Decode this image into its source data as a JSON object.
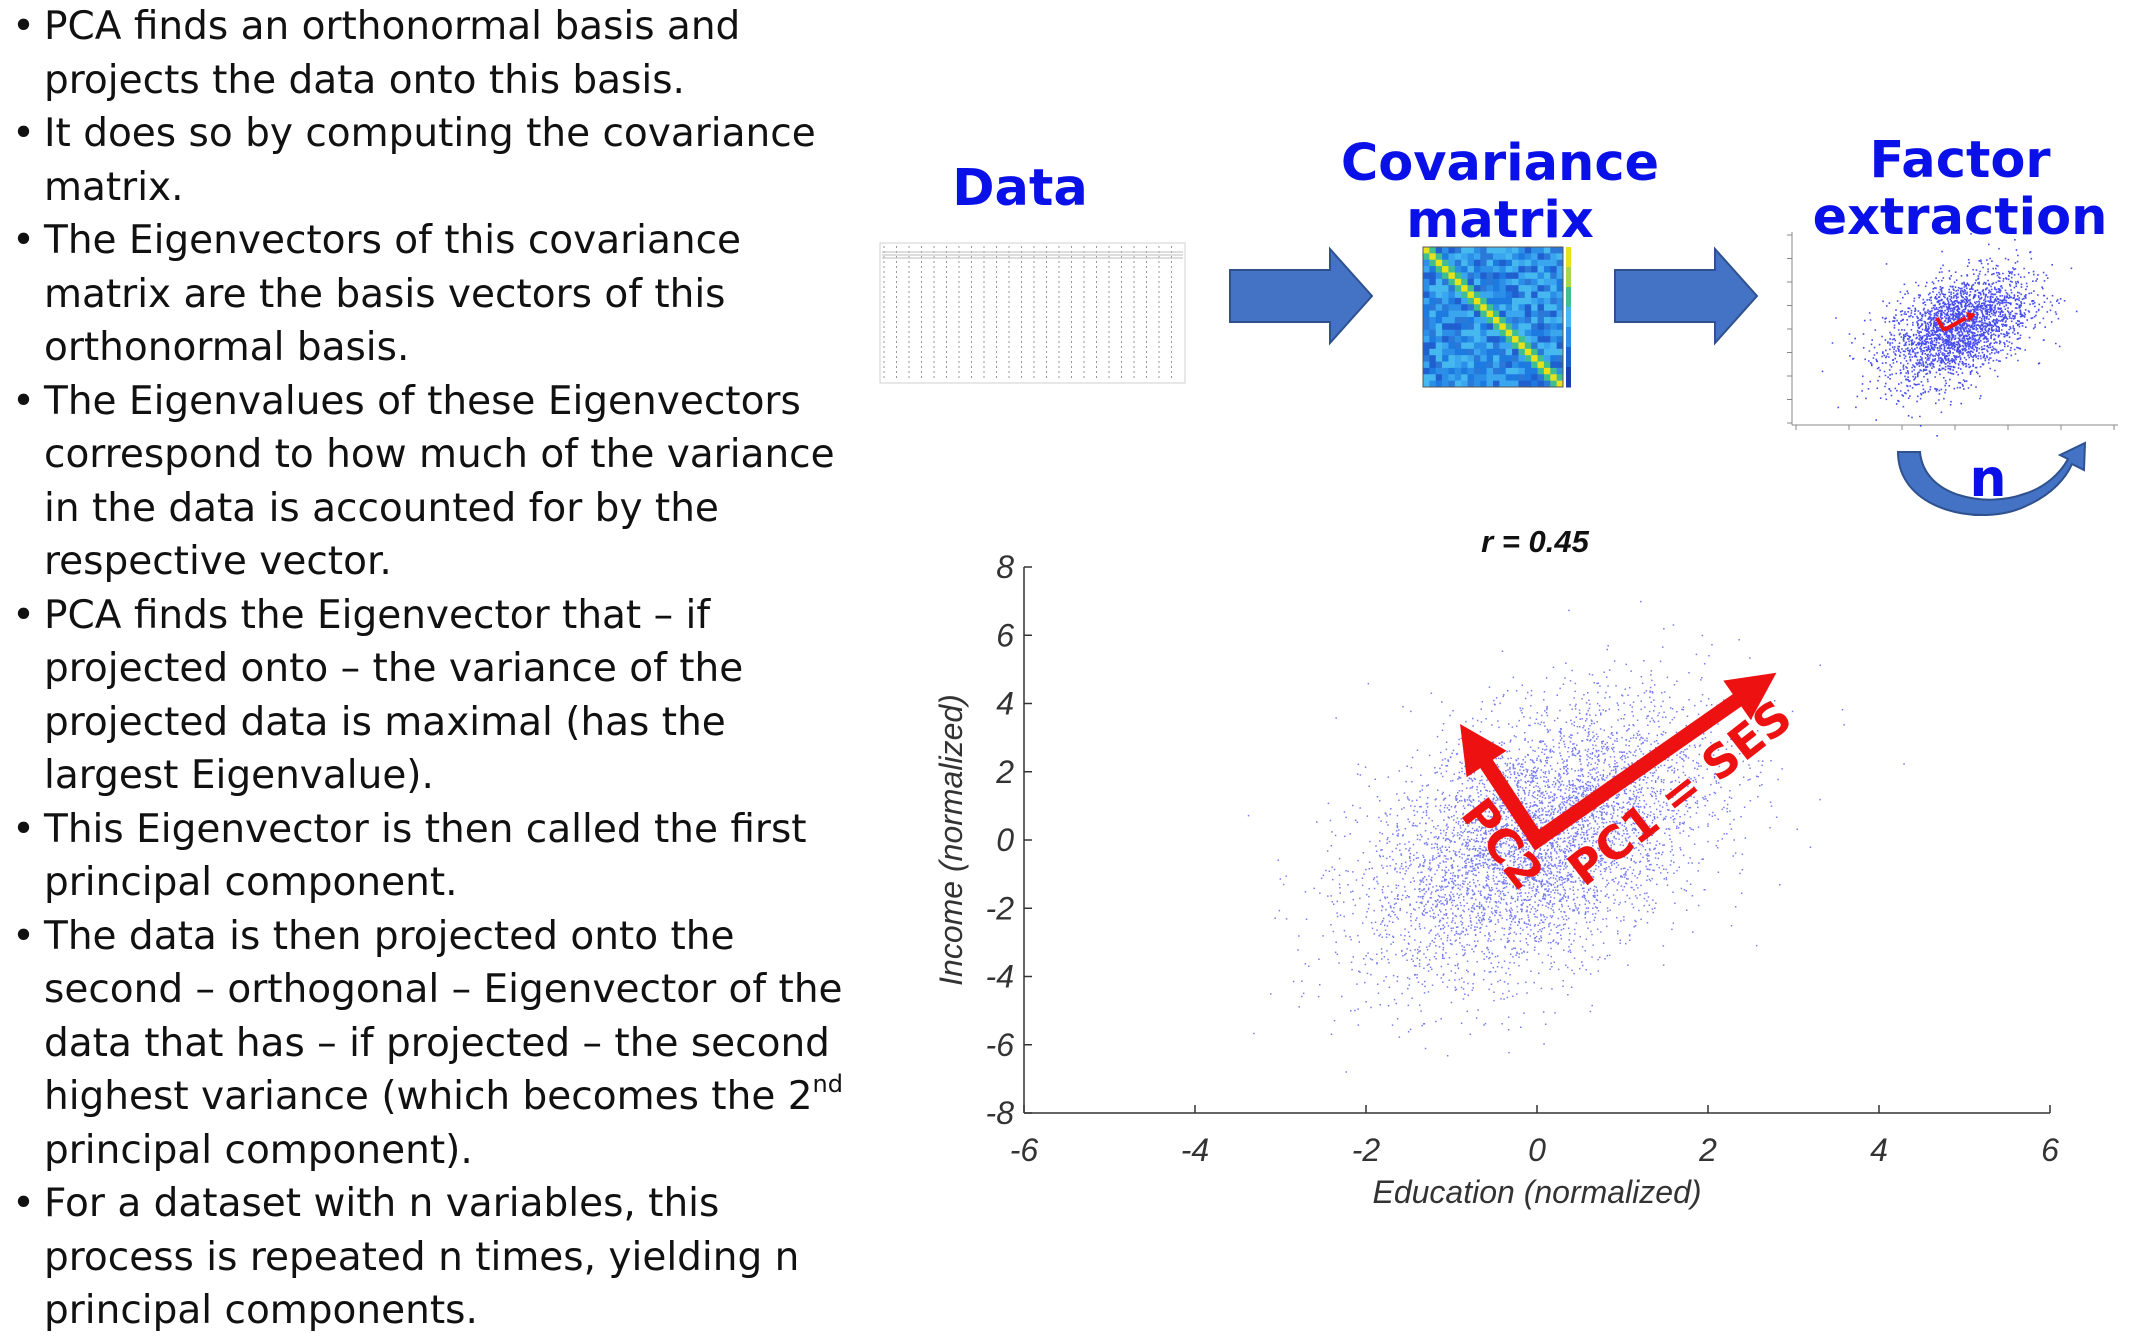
{
  "bullets": [
    {
      "text": "PCA finds an orthonormal basis and projects the data onto this basis."
    },
    {
      "text": "It does so by computing the covariance matrix."
    },
    {
      "text": "The Eigenvectors of this covariance matrix are the basis vectors of this orthonormal basis."
    },
    {
      "text": "The Eigenvalues of these Eigenvectors correspond to how much of the variance in the data is accounted for by the respective vector."
    },
    {
      "text": "PCA finds the Eigenvector that – if projected onto – the variance of the projected data is maximal (has the largest Eigenvalue)."
    },
    {
      "text": "This Eigenvector is then called the first principal component."
    },
    {
      "text": "The data is then projected onto the second – orthogonal – Eigenvector of the data that has – if projected – the second highest variance (which becomes the 2",
      "sup": "nd",
      "after": " principal component)."
    },
    {
      "text": "For a dataset with n variables, this process is repeated n times, yielding n principal components."
    }
  ],
  "pipeline": {
    "data_label": "Data",
    "covariance_label": "Covariance matrix",
    "factor_label": "Factor extraction",
    "loop_label": "n"
  },
  "colors": {
    "scatter": "#0a10e8",
    "arrows": "#ee1111",
    "pipeline_arrow": "#4472c4",
    "heading": "#0a10e8"
  },
  "icons": {
    "pipeline_arrows": "right-block-arrow",
    "loop": "curved-loop-arrow"
  },
  "chart_data": {
    "type": "scatter",
    "title": "r = 0.45",
    "xlabel": "Education (normalized)",
    "ylabel": "Income (normalized)",
    "xlim": [
      -6,
      6
    ],
    "ylim": [
      -8,
      8
    ],
    "xticks": [
      -6,
      -4,
      -2,
      0,
      2,
      4,
      6
    ],
    "yticks": [
      8,
      6,
      4,
      2,
      0,
      -2,
      -4,
      -6,
      -8
    ],
    "correlation": 0.45,
    "x_sd": 1,
    "y_sd": 2,
    "grid": false,
    "legend": "none",
    "vectors": [
      {
        "label": "PC1 = SES",
        "from": [
          0,
          0
        ],
        "to": [
          2.8,
          4.9
        ]
      },
      {
        "label": "PC2",
        "from": [
          0,
          0
        ],
        "to": [
          -0.9,
          3.4
        ]
      }
    ]
  }
}
